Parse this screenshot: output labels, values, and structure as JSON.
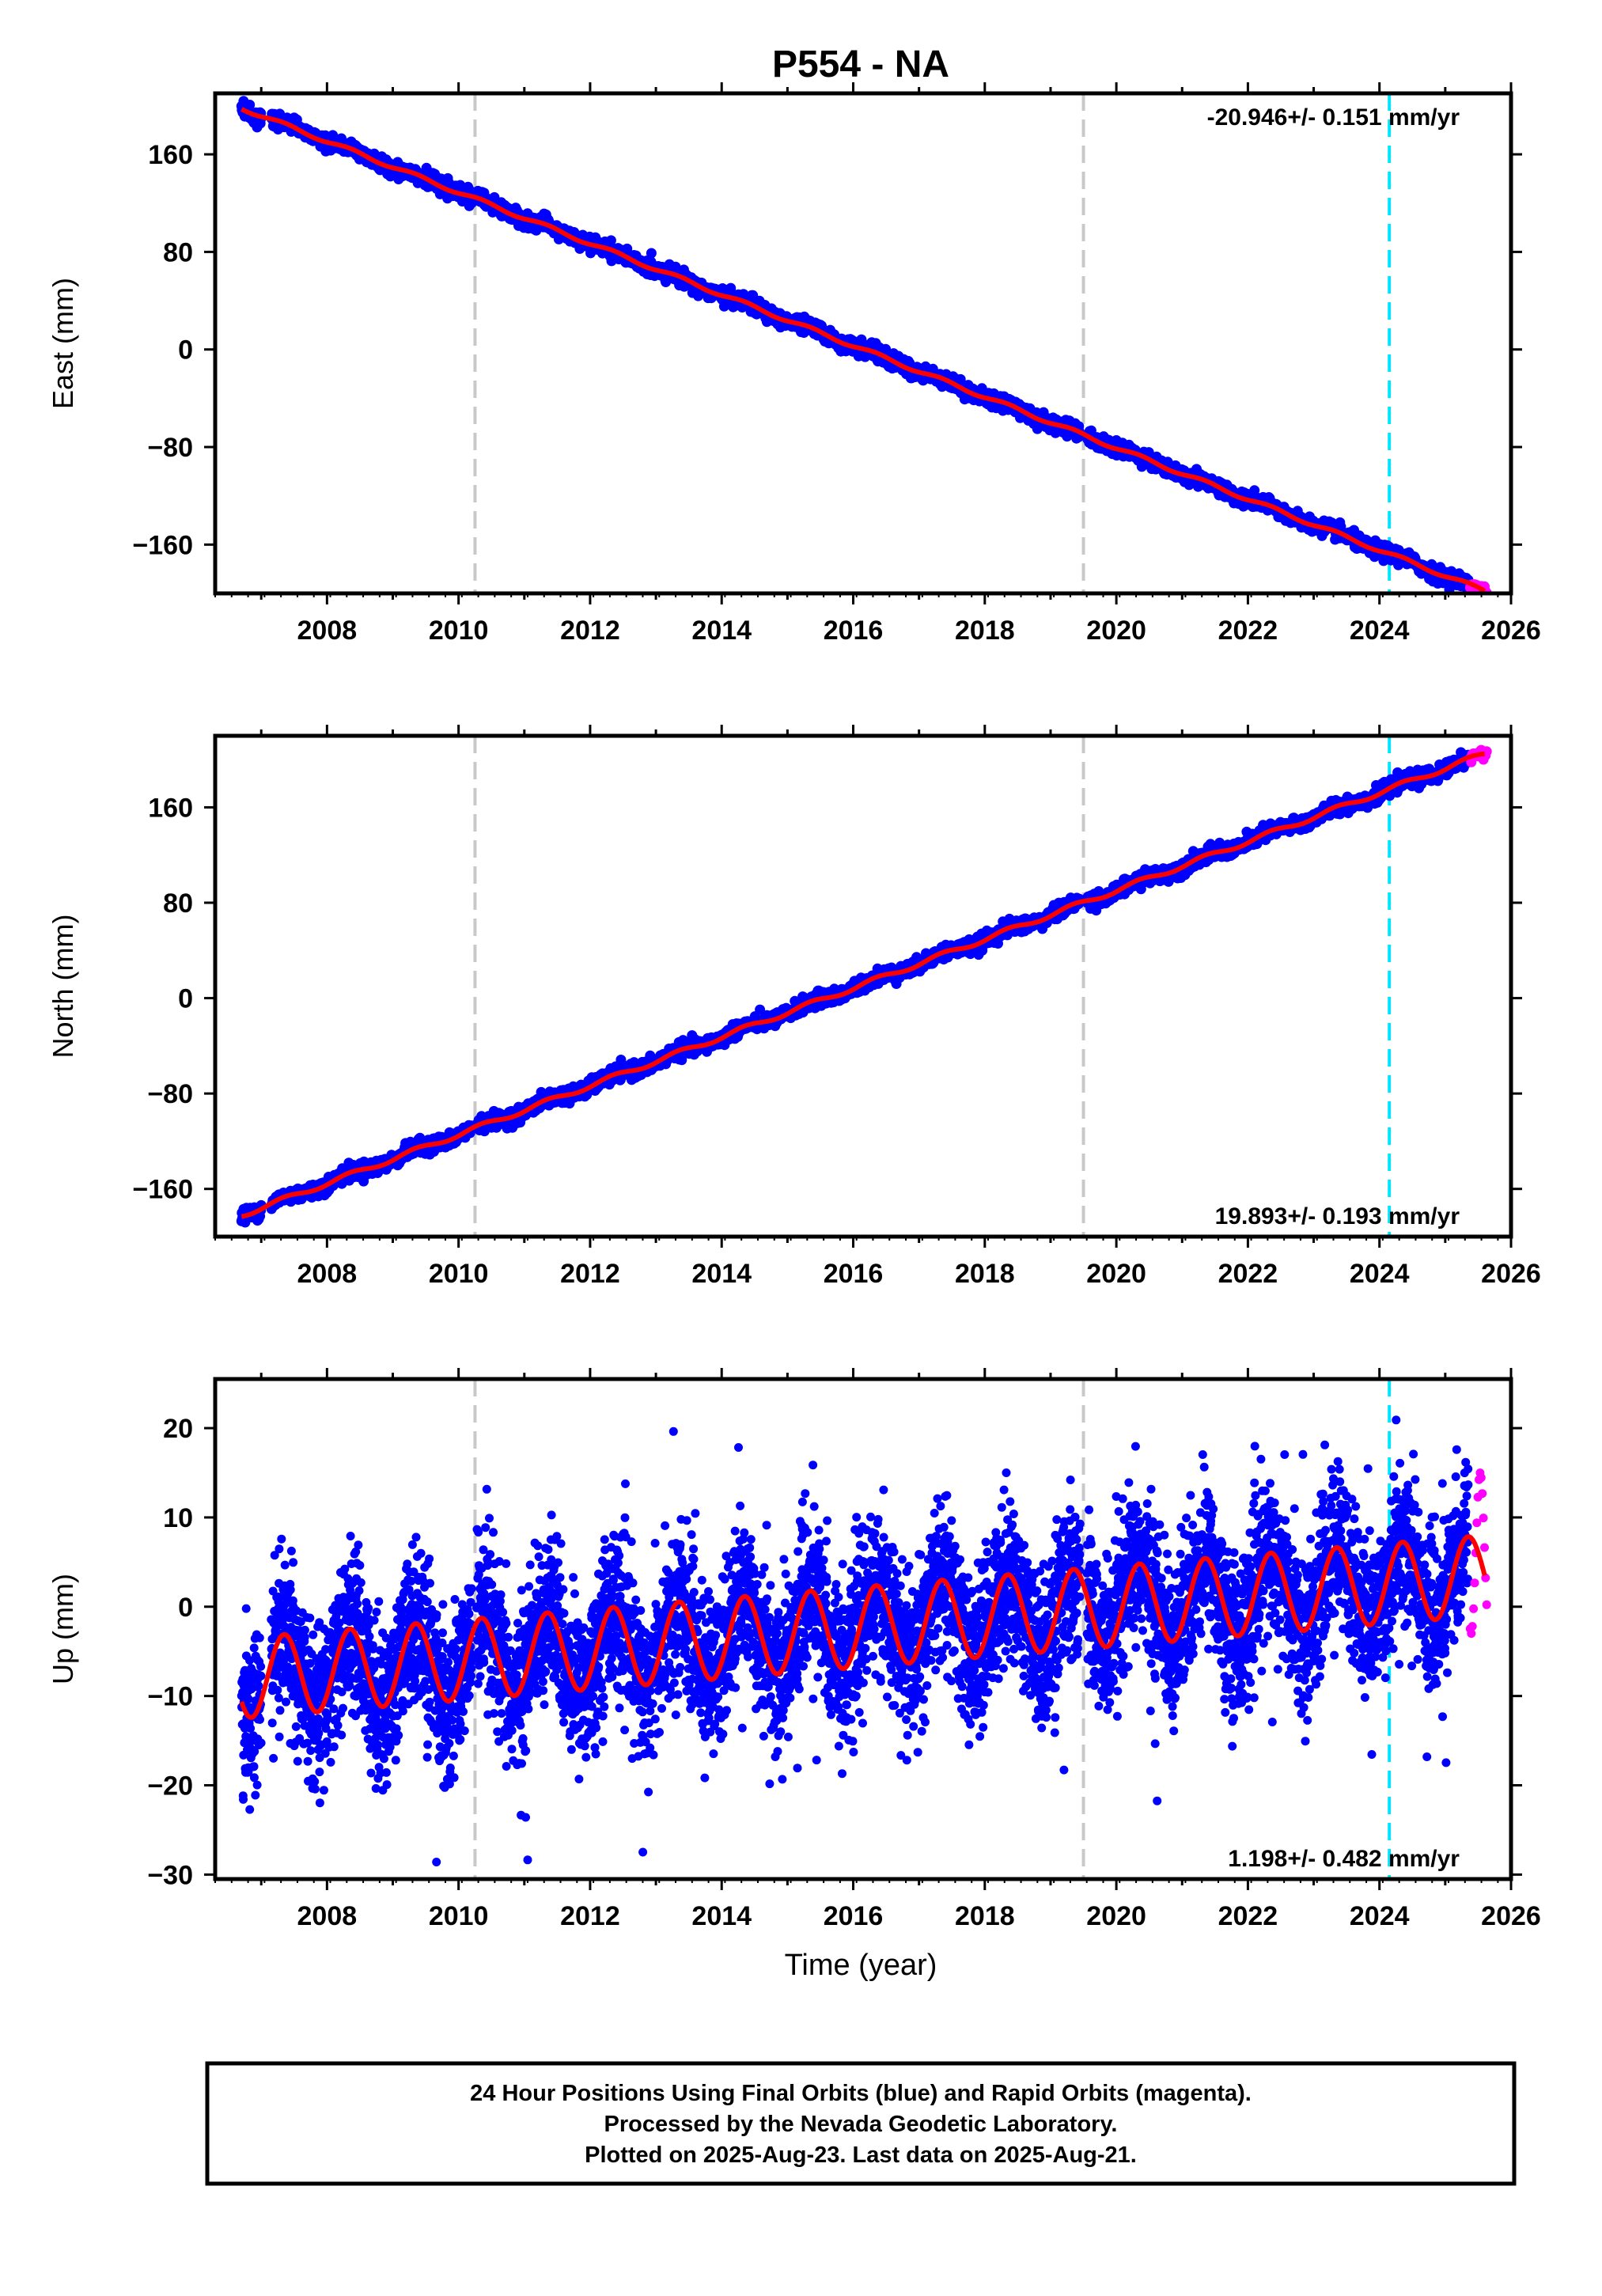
{
  "title": "P554 - NA",
  "colors": {
    "final_orbits": "#0000ff",
    "rapid_orbits": "#ff00ff",
    "model": "#ff0000",
    "equipment_change": "#c8c8c8",
    "earthquake": "#00e5ff",
    "frame": "#000000"
  },
  "xaxis": {
    "label": "Time (year)",
    "range": [
      2006.3,
      2026.0
    ],
    "ticks": [
      "2008",
      "2010",
      "2012",
      "2014",
      "2016",
      "2018",
      "2020",
      "2022",
      "2024",
      "2026"
    ]
  },
  "vertical_markers": {
    "gray_dashed_years": [
      2010.25,
      2019.5
    ],
    "cyan_dashed_years": [
      2024.15
    ]
  },
  "footer": {
    "line1": "24 Hour Positions Using Final Orbits (blue) and Rapid Orbits (magenta).",
    "line2": "Processed by the Nevada Geodetic Laboratory.",
    "line3": "Plotted on 2025-Aug-23. Last data on 2025-Aug-21."
  },
  "chart_data": [
    {
      "type": "scatter",
      "component": "east",
      "ylabel": "East (mm)",
      "ylim": [
        -200,
        210
      ],
      "yticks": [
        "160",
        "80",
        "0",
        "−80",
        "−160"
      ],
      "yticks_values": [
        160,
        80,
        0,
        -80,
        -160
      ],
      "rate_label": "-20.946+/- 0.151 mm/yr",
      "rate_position": "top-right",
      "trend": {
        "start_year": 2006.7,
        "start_value": 198,
        "end_year": 2025.6,
        "end_value": -198
      },
      "series": [
        {
          "name": "Final Orbits",
          "color": "#0000ff"
        },
        {
          "name": "Rapid Orbits",
          "color": "#ff00ff"
        }
      ]
    },
    {
      "type": "scatter",
      "component": "north",
      "ylabel": "North (mm)",
      "ylim": [
        -200,
        220
      ],
      "yticks": [
        "160",
        "80",
        "0",
        "−80",
        "−160"
      ],
      "yticks_values": [
        160,
        80,
        0,
        -80,
        -160
      ],
      "rate_label": "19.893+/- 0.193 mm/yr",
      "rate_position": "bottom-right",
      "trend": {
        "start_year": 2006.7,
        "start_value": -182,
        "end_year": 2025.6,
        "end_value": 205
      },
      "series": [
        {
          "name": "Final Orbits",
          "color": "#0000ff"
        },
        {
          "name": "Rapid Orbits",
          "color": "#ff00ff"
        }
      ]
    },
    {
      "type": "scatter",
      "component": "up",
      "ylabel": "Up (mm)",
      "ylim": [
        -30.5,
        25.5
      ],
      "yticks": [
        "20",
        "10",
        "0",
        "−10",
        "−20",
        "−30"
      ],
      "yticks_values": [
        20,
        10,
        0,
        -10,
        -20,
        -30
      ],
      "rate_label": "1.198+/- 0.482 mm/yr",
      "rate_position": "bottom-right",
      "trend": {
        "start_year": 2006.7,
        "start_value": -8,
        "end_year": 2025.6,
        "end_value": 3.5,
        "seasonal_amplitude_mm": 4.5
      },
      "series": [
        {
          "name": "Final Orbits",
          "color": "#0000ff"
        },
        {
          "name": "Rapid Orbits",
          "color": "#ff00ff"
        }
      ]
    }
  ]
}
